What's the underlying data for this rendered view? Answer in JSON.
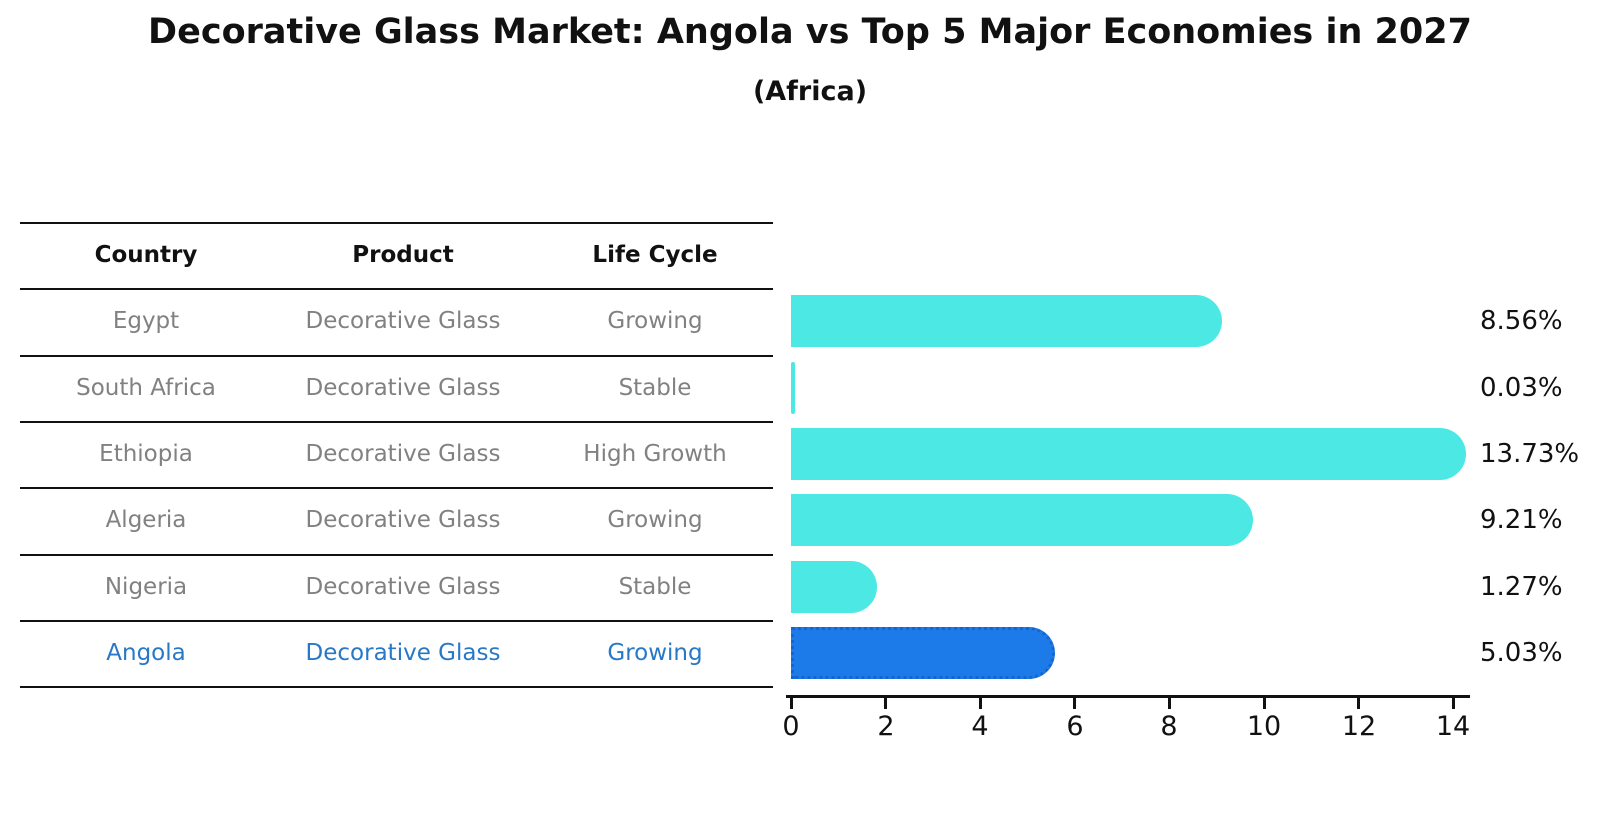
{
  "title": "Decorative Glass Market: Angola vs Top 5 Major Economies in 2027",
  "subtitle": "(Africa)",
  "table": {
    "headers": [
      "Country",
      "Product",
      "Life Cycle"
    ],
    "rows": [
      {
        "country": "Egypt",
        "product": "Decorative Glass",
        "life_cycle": "Growing",
        "highlight": false
      },
      {
        "country": "South Africa",
        "product": "Decorative Glass",
        "life_cycle": "Stable",
        "highlight": false
      },
      {
        "country": "Ethiopia",
        "product": "Decorative Glass",
        "life_cycle": "High Growth",
        "highlight": false
      },
      {
        "country": "Algeria",
        "product": "Decorative Glass",
        "life_cycle": "Growing",
        "highlight": false
      },
      {
        "country": "Nigeria",
        "product": "Decorative Glass",
        "life_cycle": "Stable",
        "highlight": true
      }
    ]
  },
  "chart_data": {
    "type": "bar",
    "orientation": "horizontal",
    "title": "Decorative Glass Market: Angola vs Top 5 Major Economies in 2027",
    "subtitle": "(Africa)",
    "categories": [
      "Egypt",
      "South Africa",
      "Ethiopia",
      "Algeria",
      "Nigeria",
      "Angola"
    ],
    "values": [
      8.56,
      0.03,
      13.73,
      9.21,
      1.27,
      5.03
    ],
    "value_labels": [
      "8.56%",
      "0.03%",
      "13.73%",
      "9.21%",
      "1.27%",
      "5.03%"
    ],
    "highlight_index": 5,
    "x_ticks": [
      0,
      2,
      4,
      6,
      8,
      10,
      12,
      14
    ],
    "xlim": [
      0,
      14.4
    ],
    "xlabel": "",
    "ylabel": "",
    "grid": false,
    "legend": "none"
  },
  "colors": {
    "bar": "#4BE8E4",
    "highlight_bar": "#1C7BE8",
    "highlight_border": "#1565D0",
    "highlight_text": "#2878C8",
    "table_text": "#818181",
    "axis": "#111111"
  }
}
